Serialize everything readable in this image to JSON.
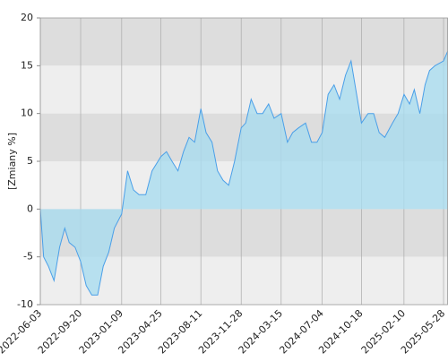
{
  "chart_data": {
    "type": "area",
    "y_label": "[Zmiany %]",
    "x": [
      "2022-06-03",
      "2022-06-12",
      "2022-06-25",
      "2022-07-10",
      "2022-07-25",
      "2022-08-08",
      "2022-08-20",
      "2022-09-05",
      "2022-09-20",
      "2022-10-05",
      "2022-10-20",
      "2022-11-05",
      "2022-11-20",
      "2022-12-05",
      "2022-12-20",
      "2023-01-09",
      "2023-01-25",
      "2023-02-10",
      "2023-02-25",
      "2023-03-15",
      "2023-04-01",
      "2023-04-25",
      "2023-05-10",
      "2023-05-25",
      "2023-06-10",
      "2023-06-25",
      "2023-07-10",
      "2023-07-25",
      "2023-08-11",
      "2023-08-25",
      "2023-09-10",
      "2023-09-25",
      "2023-10-10",
      "2023-10-25",
      "2023-11-10",
      "2023-11-28",
      "2023-12-10",
      "2023-12-25",
      "2024-01-10",
      "2024-01-25",
      "2024-02-10",
      "2024-02-25",
      "2024-03-15",
      "2024-04-01",
      "2024-04-15",
      "2024-05-01",
      "2024-05-20",
      "2024-06-05",
      "2024-06-20",
      "2024-07-04",
      "2024-07-20",
      "2024-08-05",
      "2024-08-20",
      "2024-09-05",
      "2024-09-20",
      "2024-10-05",
      "2024-10-18",
      "2024-11-05",
      "2024-11-20",
      "2024-12-05",
      "2024-12-20",
      "2025-01-10",
      "2025-01-25",
      "2025-02-10",
      "2025-02-25",
      "2025-03-10",
      "2025-03-25",
      "2025-04-08",
      "2025-04-20",
      "2025-05-05",
      "2025-05-28",
      "2025-06-08"
    ],
    "series": [
      {
        "color": "#4a9fe8",
        "fill": "#a9dcef",
        "values": [
          0,
          -5,
          -6,
          -7.5,
          -4,
          -2,
          -3.5,
          -4,
          -5.5,
          -8,
          -9,
          -9,
          -6,
          -4.5,
          -2,
          -0.5,
          4,
          2,
          1.5,
          1.5,
          4,
          5.5,
          6,
          5,
          4,
          6,
          7.5,
          7,
          10.5,
          8,
          7,
          4,
          3,
          2.5,
          5,
          8.5,
          9,
          11.5,
          10,
          10,
          11,
          9.5,
          10,
          7,
          8,
          8.5,
          9,
          7,
          7,
          8,
          12,
          13,
          11.5,
          14,
          15.5,
          12,
          9,
          10,
          10,
          8,
          7.5,
          9,
          10,
          12,
          11,
          12.5,
          10,
          13,
          14.5,
          15,
          15.5,
          16.5
        ]
      }
    ],
    "xlim": [
      "2022-06-03",
      "2025-06-09"
    ],
    "xticks": [
      "2022-06-03",
      "2022-09-20",
      "2023-01-09",
      "2023-04-25",
      "2023-08-11",
      "2023-11-28",
      "2024-03-15",
      "2024-07-04",
      "2024-10-18",
      "2025-02-10",
      "2025-05-28"
    ],
    "ylim": [
      -10,
      20
    ],
    "yticks": [
      20,
      15,
      10,
      5,
      0,
      -5,
      -10
    ],
    "grid": true,
    "bands": [
      "#dddddd",
      "#eeeeee"
    ]
  }
}
